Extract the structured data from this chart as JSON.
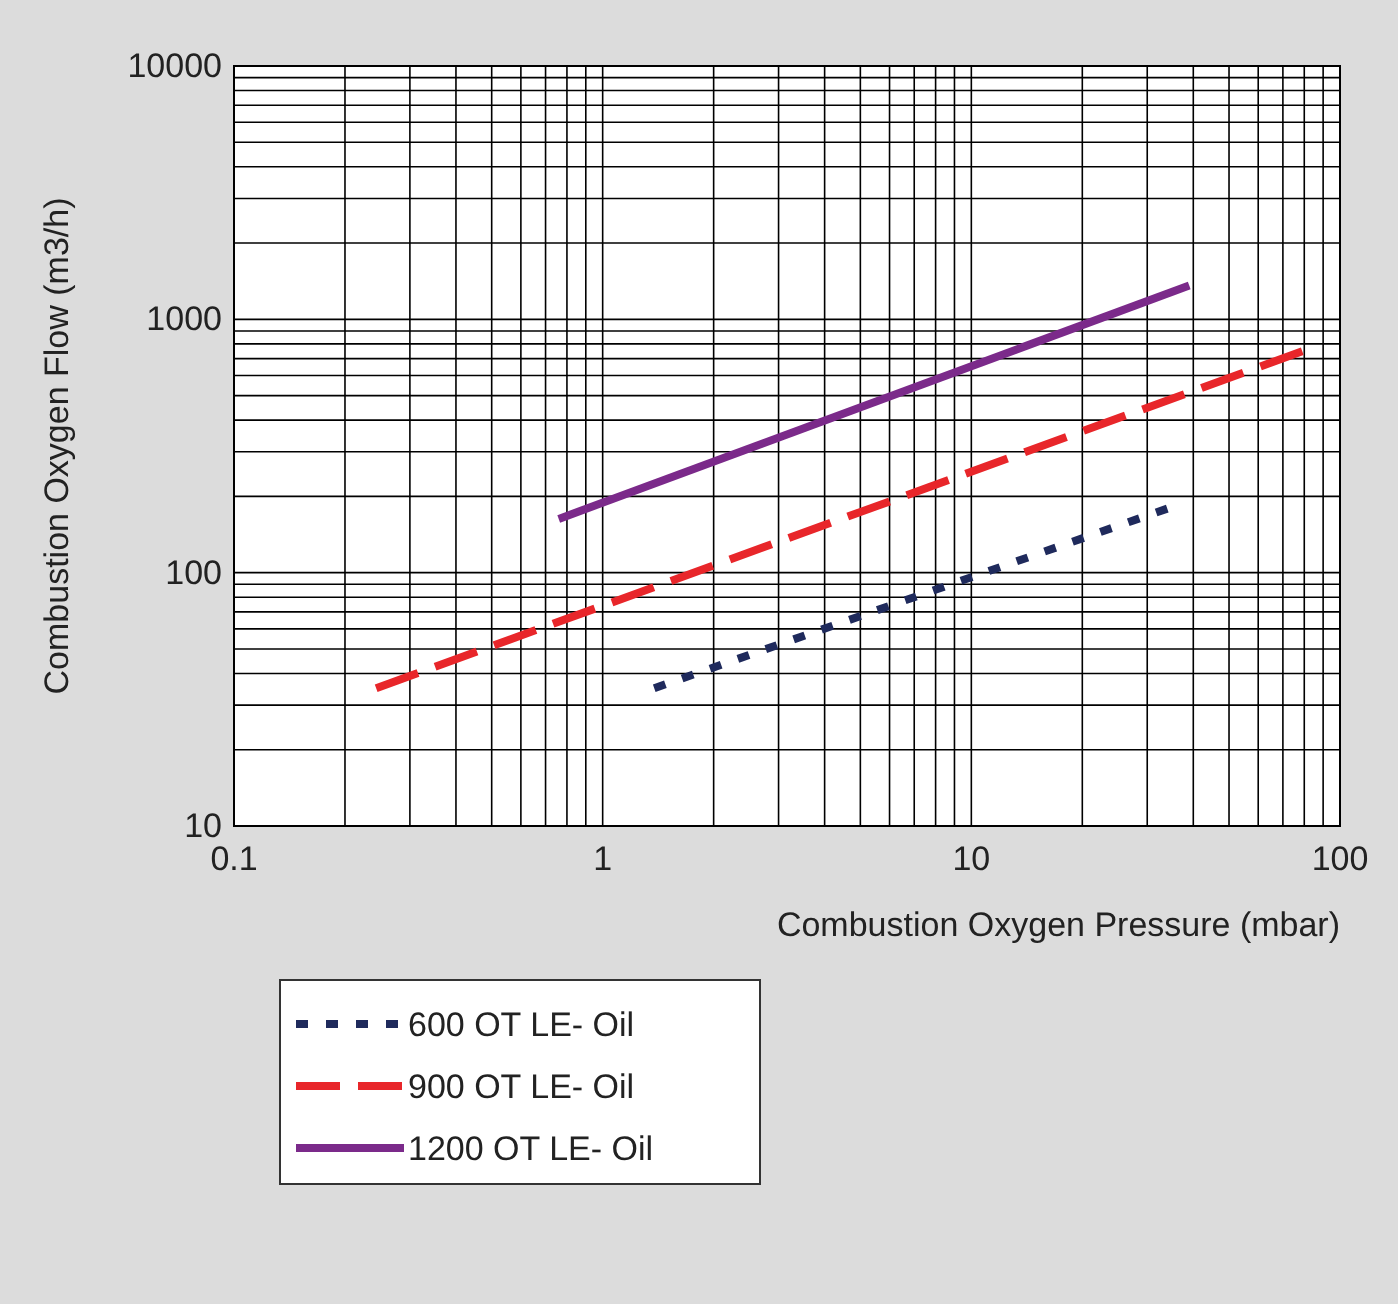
{
  "chart_data": {
    "type": "line",
    "xlabel": "Combustion Oxygen Pressure (mbar)",
    "ylabel": "Combustion Oxygen Flow (m3/h)",
    "log": "xy",
    "grid": true,
    "legend": "bottom",
    "xlim": [
      0.1,
      100
    ],
    "xticks": [
      0.1,
      1,
      10,
      100
    ],
    "ylim": [
      10,
      10000
    ],
    "yticks": [
      10,
      100,
      1000,
      10000
    ],
    "series": [
      {
        "name": "600 OT LE- Oil",
        "color": "#1f2a5c",
        "line_style": "dotted",
        "x": [
          1.38,
          34
        ],
        "values": [
          35,
          179
        ]
      },
      {
        "name": "900 OT LE- Oil",
        "color": "#e8262a",
        "line_style": "dashed",
        "x": [
          0.243,
          79
        ],
        "values": [
          35,
          748
        ]
      },
      {
        "name": "1200 OT LE- Oil",
        "color": "#7b2a8a",
        "line_style": "solid",
        "x": [
          0.76,
          39
        ],
        "values": [
          163,
          1360
        ]
      }
    ]
  }
}
